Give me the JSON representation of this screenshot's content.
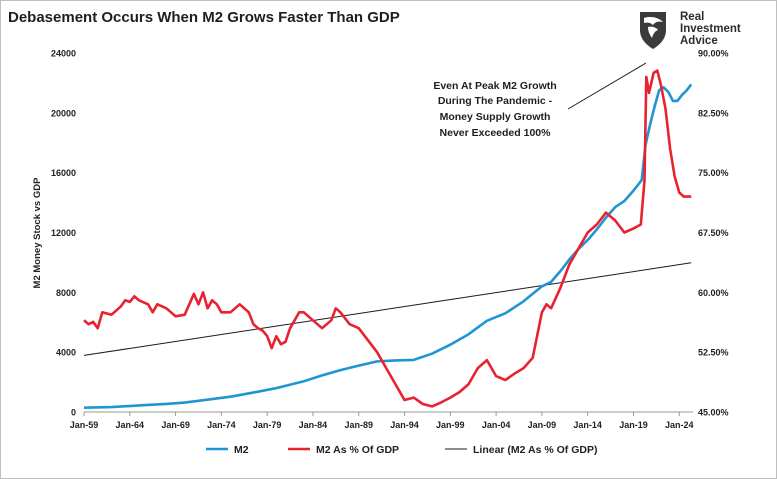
{
  "title": "Debasement Occurs When M2 Grows Faster Than GDP",
  "logo": {
    "icon": "eagle-icon",
    "text": [
      "Real",
      "Investment",
      "Advice"
    ]
  },
  "annotation": [
    "Even At Peak M2 Growth",
    "During The Pandemic -",
    "Money Supply Growth",
    "Never Exceeded 100%"
  ],
  "chart_data": {
    "type": "line",
    "title": "Debasement Occurs When M2 Grows Faster Than GDP",
    "ylabel": "M2 Money Stock vs GDP",
    "ylim": [
      0,
      24000
    ],
    "y2lim": [
      45,
      90
    ],
    "left_ticks": [
      "0",
      "4000",
      "8000",
      "12000",
      "16000",
      "20000",
      "24000"
    ],
    "right_ticks": [
      "45.00%",
      "52.50%",
      "60.00%",
      "67.50%",
      "75.00%",
      "82.50%",
      "90.00%"
    ],
    "x_ticks": [
      "Jan-59",
      "Jan-64",
      "Jan-69",
      "Jan-74",
      "Jan-79",
      "Jan-84",
      "Jan-89",
      "Jan-94",
      "Jan-99",
      "Jan-04",
      "Jan-09",
      "Jan-14",
      "Jan-19",
      "Jan-24"
    ],
    "xlim": [
      1959,
      2025.5
    ],
    "legend_position": "bottom",
    "series": [
      {
        "name": "M2",
        "axis": "left",
        "color": "#1f96d3",
        "x": [
          1959,
          1962,
          1965,
          1968,
          1970,
          1973,
          1975,
          1978,
          1980,
          1983,
          1985,
          1987,
          1989,
          1991,
          1993,
          1995,
          1997,
          1999,
          2001,
          2003,
          2005,
          2007,
          2008,
          2009,
          2010,
          2011,
          2012,
          2013,
          2014,
          2015,
          2016,
          2017,
          2018,
          2019,
          2019.9,
          2020.3,
          2020.8,
          2021.3,
          2021.8,
          2022.3,
          2022.8,
          2023.3,
          2023.8,
          2024.3,
          2024.8,
          2025.3
        ],
        "y": [
          290,
          330,
          440,
          540,
          630,
          860,
          1020,
          1360,
          1600,
          2050,
          2450,
          2800,
          3100,
          3380,
          3450,
          3480,
          3900,
          4500,
          5200,
          6100,
          6600,
          7400,
          7900,
          8400,
          8700,
          9400,
          10200,
          10900,
          11500,
          12200,
          13000,
          13700,
          14100,
          14800,
          15500,
          17800,
          19200,
          20400,
          21500,
          21700,
          21400,
          20800,
          20800,
          21200,
          21500,
          21900
        ]
      },
      {
        "name": "M2 As % Of GDP",
        "axis": "right",
        "color": "#e8222f",
        "x": [
          1959,
          1959.5,
          1960,
          1960.5,
          1961,
          1962,
          1963,
          1963.5,
          1964,
          1964.5,
          1965,
          1966,
          1966.5,
          1967,
          1968,
          1969,
          1970,
          1970.5,
          1971,
          1971.5,
          1972,
          1972.5,
          1973,
          1973.5,
          1974,
          1975,
          1976,
          1977,
          1977.5,
          1978,
          1978.5,
          1979,
          1979.5,
          1980,
          1980.5,
          1981,
          1981.5,
          1982,
          1982.5,
          1983,
          1984,
          1985,
          1986,
          1986.5,
          1987,
          1988,
          1989,
          1990,
          1991,
          1992,
          1993,
          1994,
          1995,
          1996,
          1997,
          1998,
          1999,
          2000,
          2001,
          2002,
          2003,
          2004,
          2005,
          2006,
          2007,
          2008,
          2009,
          2009.5,
          2010,
          2011,
          2012,
          2013,
          2014,
          2015,
          2016,
          2017,
          2018,
          2019,
          2019.8,
          2020.2,
          2020.4,
          2020.7,
          2021.2,
          2021.6,
          2022,
          2022.5,
          2023,
          2023.5,
          2024,
          2024.5,
          2025.3
        ],
        "y": [
          56.5,
          56,
          56.3,
          55.5,
          57.5,
          57.2,
          58.2,
          59,
          58.8,
          59.5,
          59,
          58.5,
          57.5,
          58.5,
          58,
          57,
          57.2,
          58.5,
          59.8,
          58.5,
          60,
          58,
          59,
          58.5,
          57.5,
          57.5,
          58.5,
          57.5,
          56,
          55.5,
          55.2,
          54.5,
          53,
          54.5,
          53.5,
          53.8,
          55.5,
          56.5,
          57.5,
          57.5,
          56.5,
          55.5,
          56.5,
          58,
          57.5,
          56,
          55.5,
          54,
          52.5,
          50.5,
          48.5,
          46.5,
          46.8,
          46,
          45.7,
          46.2,
          46.8,
          47.5,
          48.5,
          50.5,
          51.5,
          49.5,
          49,
          49.8,
          50.5,
          51.8,
          57.5,
          58.5,
          58,
          60.5,
          63.5,
          65.5,
          67.5,
          68.5,
          70,
          69,
          67.5,
          68,
          68.5,
          74,
          87,
          85,
          87.5,
          87.8,
          86,
          83,
          78,
          74.5,
          72.5,
          72,
          72
        ]
      },
      {
        "name": "Linear (M2 As % Of GDP)",
        "axis": "right",
        "color": "#1a1a1a",
        "x": [
          1959,
          2025.3
        ],
        "y": [
          52.1,
          63.7
        ]
      }
    ]
  }
}
